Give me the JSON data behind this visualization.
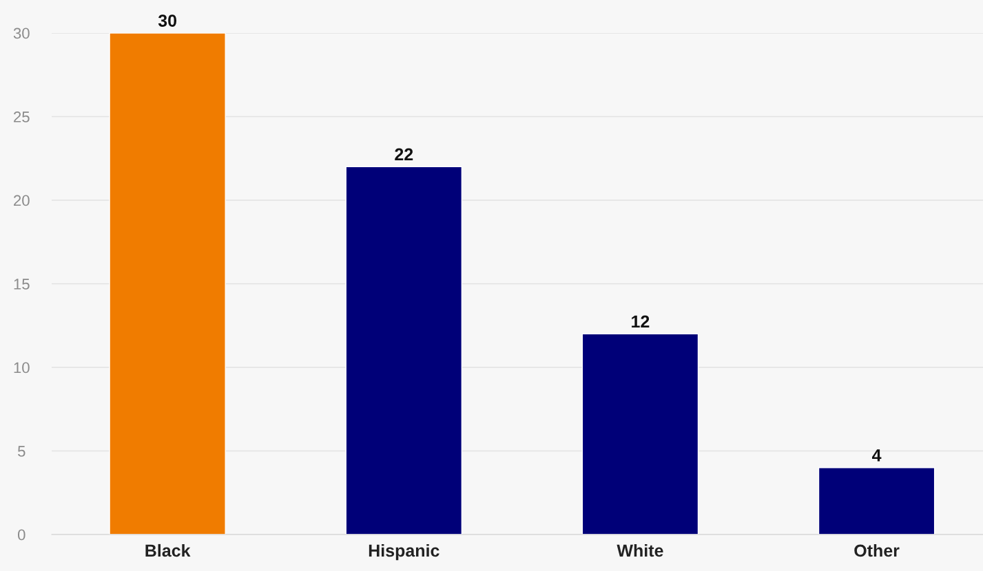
{
  "chart_data": {
    "type": "bar",
    "categories": [
      "Black",
      "Hispanic",
      "White",
      "Other"
    ],
    "values": [
      30,
      22,
      12,
      4
    ],
    "colors": [
      "#f07c00",
      "#000078",
      "#000078",
      "#000078"
    ],
    "ylim": [
      0,
      30
    ],
    "yticks": [
      0,
      5,
      10,
      15,
      20,
      25,
      30
    ],
    "grid": "y",
    "data_labels": true
  }
}
